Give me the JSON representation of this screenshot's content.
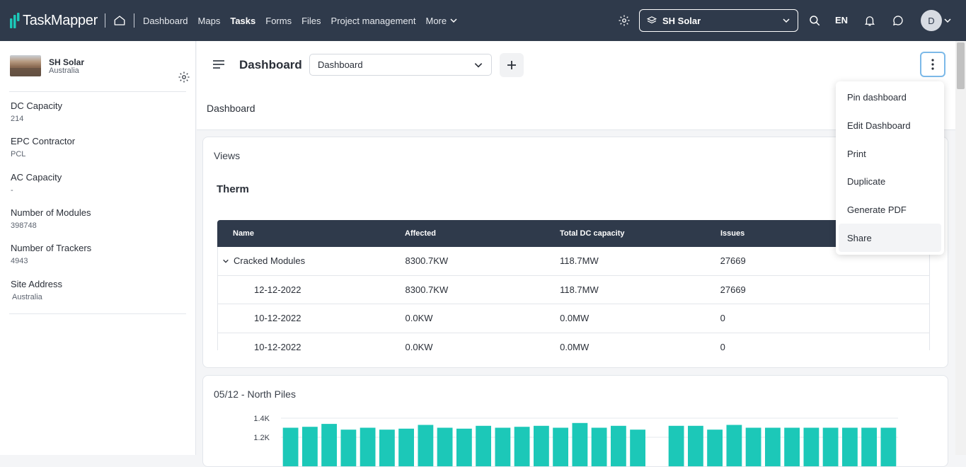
{
  "nav": {
    "logo": "TaskMapper",
    "links": [
      "Dashboard",
      "Maps",
      "Tasks",
      "Forms",
      "Files",
      "Project management"
    ],
    "active_link": "Tasks",
    "more_label": "More",
    "project_selector": "SH Solar",
    "language": "EN",
    "avatar_initial": "D",
    "colors": {
      "bar": "#2f3a4b",
      "accent": "#1cc8b8"
    }
  },
  "sidebar": {
    "project_name": "SH Solar",
    "project_location": "Australia",
    "attributes": [
      {
        "label": "DC Capacity",
        "value": "214"
      },
      {
        "label": "EPC Contractor",
        "value": "PCL"
      },
      {
        "label": "AC Capacity",
        "value": "-"
      },
      {
        "label": "Number of Modules",
        "value": "398748"
      },
      {
        "label": "Number of Trackers",
        "value": "4943"
      },
      {
        "label": "Site Address",
        "value": "Australia"
      }
    ]
  },
  "header": {
    "title": "Dashboard",
    "dashboard_select": "Dashboard",
    "subtitle": "Dashboard"
  },
  "views_card": {
    "title": "Views",
    "section_title": "Therm",
    "columns": [
      "Name",
      "Affected",
      "Total DC capacity",
      "Issues"
    ],
    "rows": [
      {
        "name": "Cracked Modules",
        "affected": "8300.7KW",
        "total": "118.7MW",
        "issues": "27669",
        "expanded": true
      },
      {
        "name": "12-12-2022",
        "affected": "8300.7KW",
        "total": "118.7MW",
        "issues": "27669"
      },
      {
        "name": "10-12-2022",
        "affected": "0.0KW",
        "total": "0.0MW",
        "issues": "0"
      },
      {
        "name": "10-12-2022",
        "affected": "0.0KW",
        "total": "0.0MW",
        "issues": "0"
      }
    ]
  },
  "piles_card": {
    "title": "05/12 - North Piles"
  },
  "chart_data": {
    "type": "bar",
    "title": "05/12 - North Piles",
    "ytick_labels": [
      "1.4K",
      "1.2K"
    ],
    "values": [
      1300,
      1310,
      1340,
      1280,
      1300,
      1280,
      1290,
      1330,
      1300,
      1290,
      1320,
      1300,
      1310,
      1320,
      1300,
      1350,
      1300,
      1320,
      1280,
      null,
      1320,
      1320,
      1280,
      1330,
      1300,
      1300,
      1300,
      1300,
      1300,
      1300,
      1300,
      1300
    ],
    "color": "#1cc8b8",
    "ylim": [
      0,
      1400
    ],
    "grid": true
  },
  "menu": {
    "items": [
      "Pin dashboard",
      "Edit Dashboard",
      "Print",
      "Duplicate",
      "Generate PDF",
      "Share"
    ],
    "hovered": "Share"
  }
}
